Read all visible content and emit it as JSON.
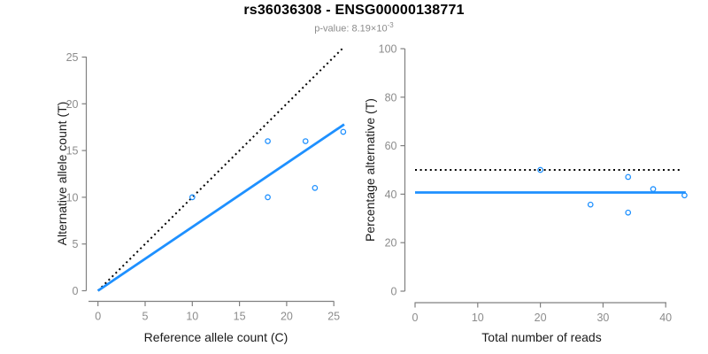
{
  "header": {
    "title": "rs36036308 - ENSG00000138771",
    "p_value_prefix": "p-value: ",
    "p_value_mantissa": "8.19",
    "multiply_sign": "×",
    "p_value_base": "10",
    "p_value_exponent": "-3"
  },
  "colors": {
    "accent_blue": "#1E90FF",
    "line_black": "#000000",
    "axis_gray": "#808080",
    "tick_label_gray": "#8C8C8C",
    "axis_title_dark": "#1A1A1A"
  },
  "chart_data": [
    {
      "id": "allele-count-scatter",
      "type": "scatter",
      "xlabel": "Reference allele count (C)",
      "ylabel": "Alternative allele count (T)",
      "xlim": [
        0,
        26.3
      ],
      "ylim": [
        0,
        26.2
      ],
      "xticks": [
        0,
        5,
        10,
        15,
        20,
        25
      ],
      "yticks": [
        0,
        5,
        10,
        15,
        20,
        25
      ],
      "grid": false,
      "legend": "none",
      "points": [
        [
          10,
          10
        ],
        [
          18,
          10
        ],
        [
          18,
          16
        ],
        [
          22,
          16
        ],
        [
          23,
          11
        ],
        [
          26,
          17
        ]
      ],
      "lines": [
        {
          "name": "identity-line",
          "style": "dotted",
          "color": "#000000",
          "x1": 0,
          "y1": 0,
          "x2": 26.1,
          "y2": 26.1
        },
        {
          "name": "fit-line",
          "style": "solid",
          "color": "#1E90FF",
          "x1": 0,
          "y1": 0,
          "x2": 26.1,
          "y2": 17.8
        }
      ]
    },
    {
      "id": "percentage-reads-scatter",
      "type": "scatter",
      "xlabel": "Total number of reads",
      "ylabel": "Percentage alternative (T)",
      "xlim": [
        0,
        43.5
      ],
      "ylim": [
        0,
        100
      ],
      "xticks": [
        0,
        10,
        20,
        30,
        40
      ],
      "yticks": [
        0,
        20,
        40,
        60,
        80,
        100
      ],
      "grid": false,
      "legend": "none",
      "points": [
        [
          20,
          50
        ],
        [
          28,
          35.7
        ],
        [
          34,
          47.1
        ],
        [
          34,
          32.4
        ],
        [
          38,
          42.1
        ],
        [
          43,
          39.5
        ]
      ],
      "lines": [
        {
          "name": "reference-50pct-line",
          "style": "dotted",
          "color": "#000000",
          "x1": 0,
          "y1": 50,
          "x2": 42.5,
          "y2": 50
        },
        {
          "name": "fit-line",
          "style": "solid",
          "color": "#1E90FF",
          "x1": 0,
          "y1": 40.7,
          "x2": 43.2,
          "y2": 40.7
        }
      ]
    }
  ]
}
